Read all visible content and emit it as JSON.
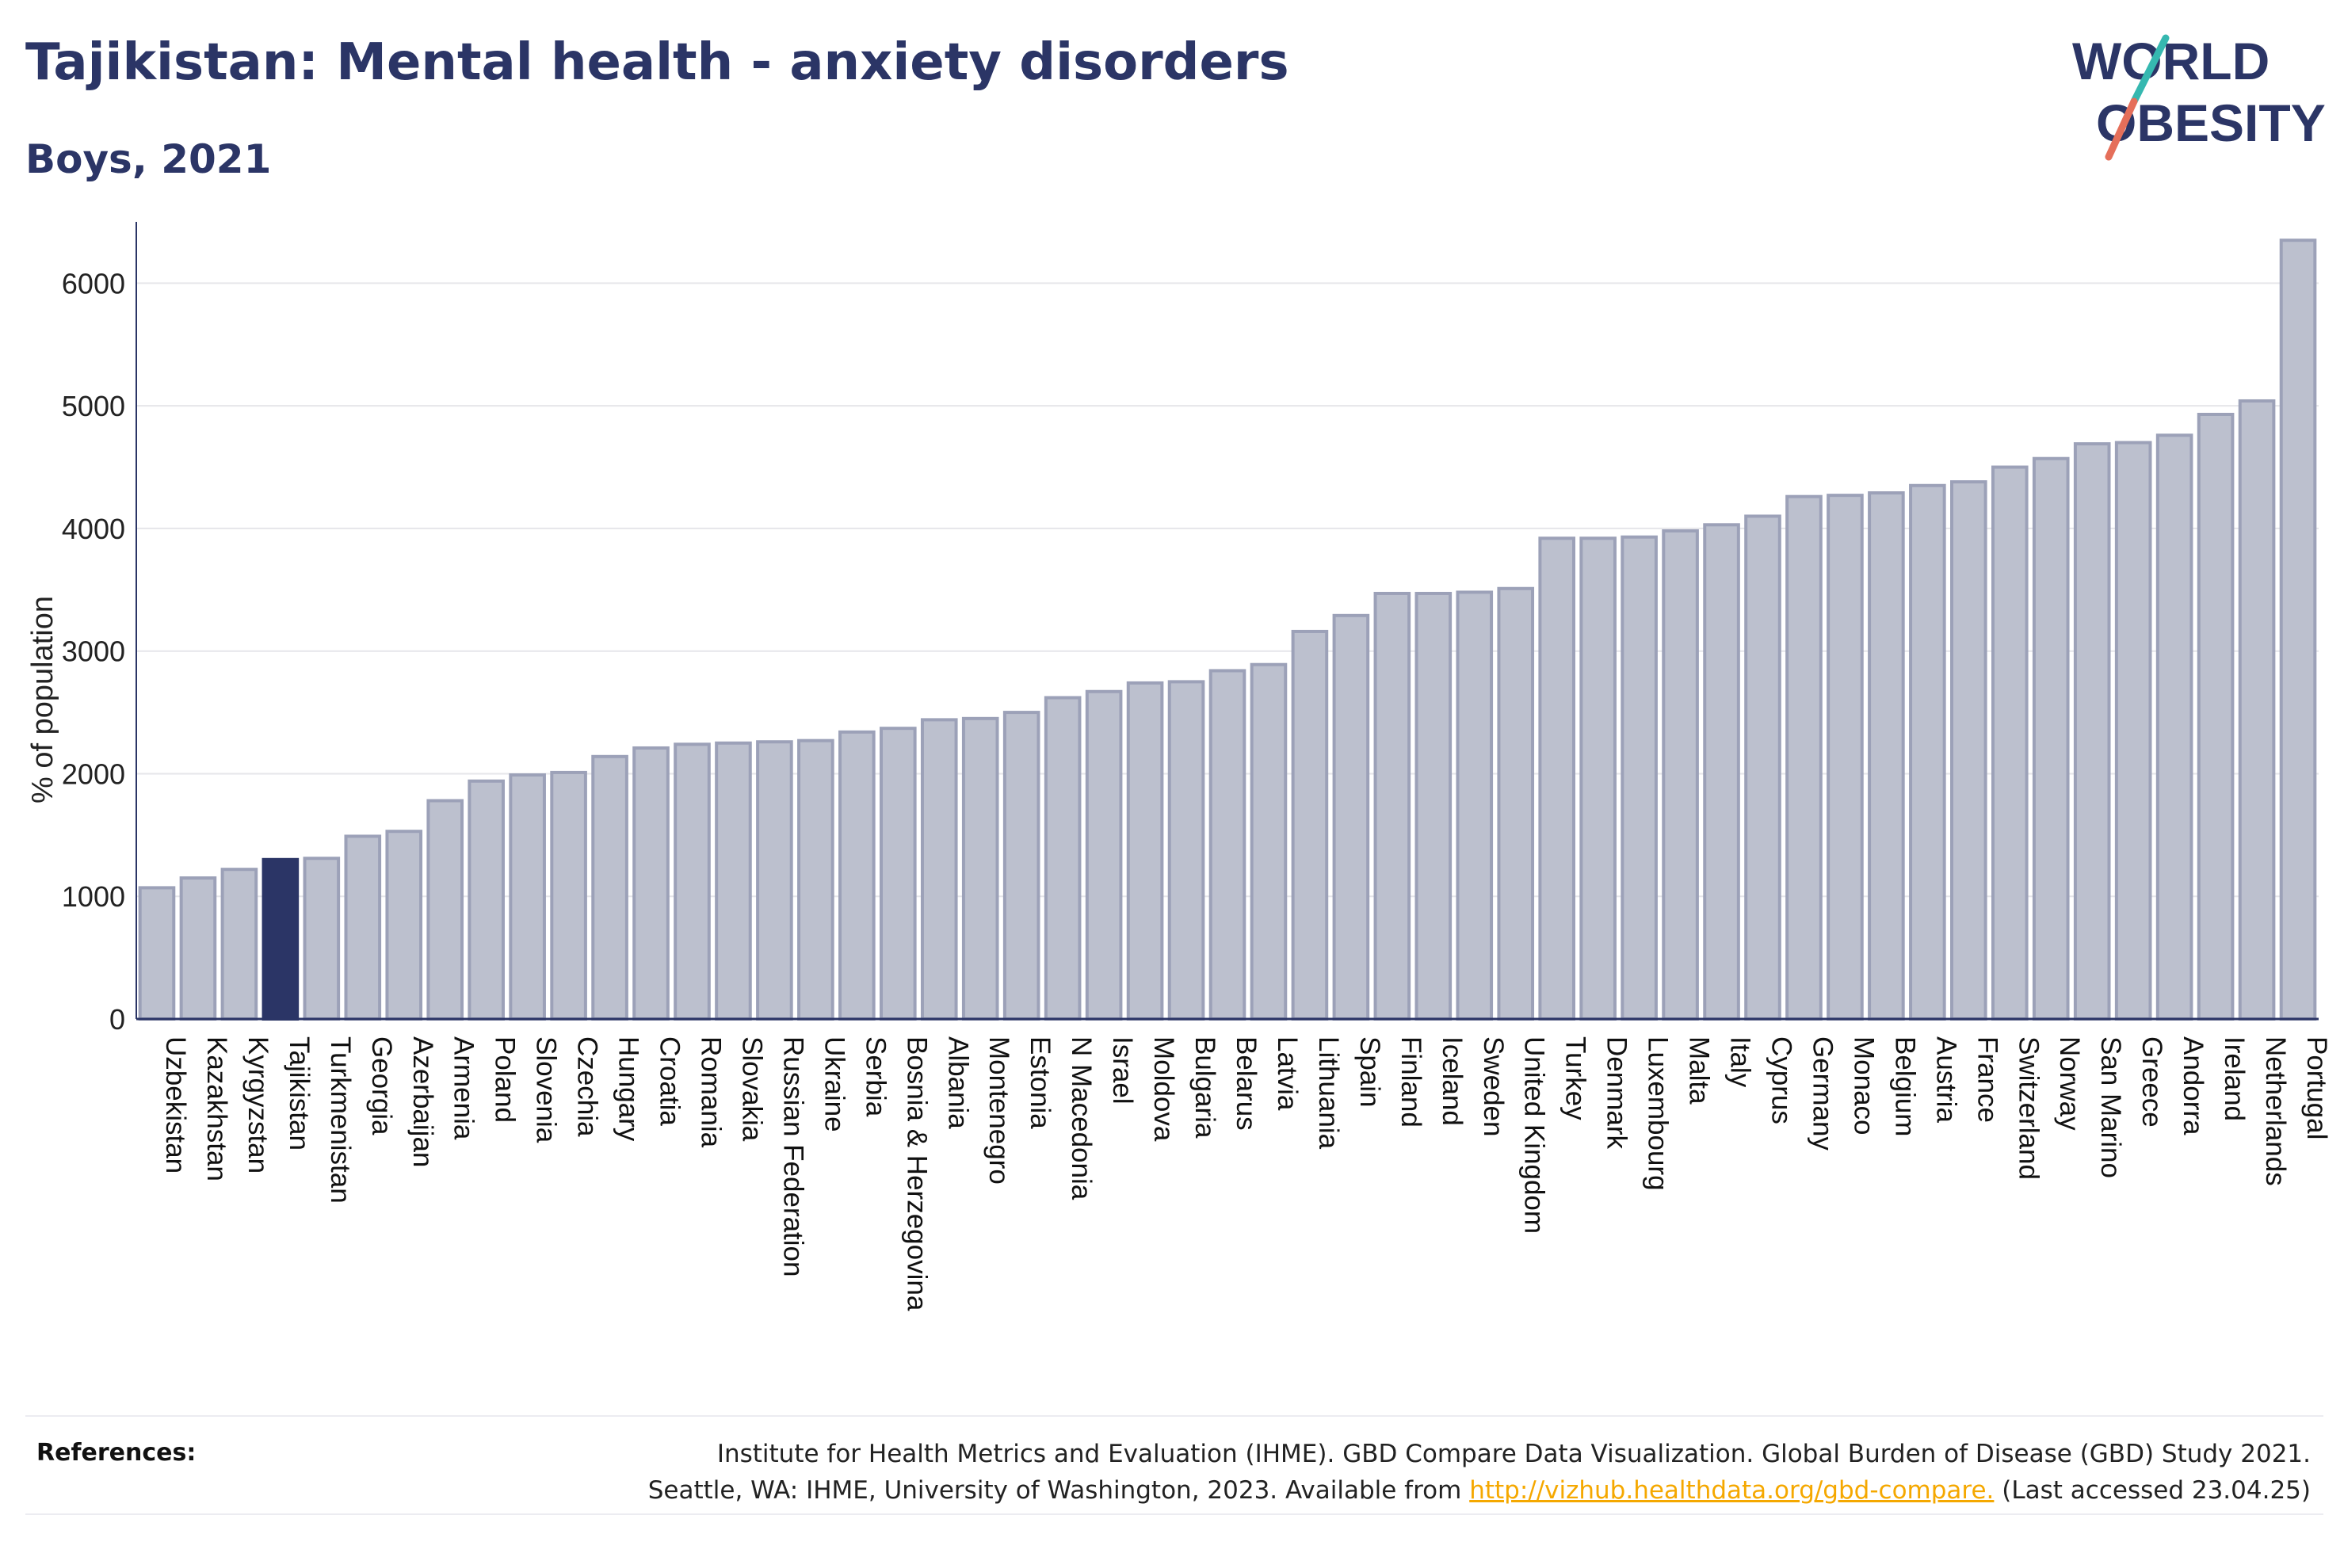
{
  "header": {
    "title": "Tajikistan: Mental health - anxiety disorders",
    "subtitle": "Boys, 2021"
  },
  "logo": {
    "line1": "WORLD",
    "line2": "OBESITY"
  },
  "colors": {
    "bar_fill": "#bcc0ce",
    "bar_stroke": "#9ca1b8",
    "highlight": "#2b3566",
    "accent_red": "#e56f5a",
    "accent_teal": "#36b8b0",
    "link": "#f5a800"
  },
  "chart_data": {
    "type": "bar",
    "title": "Tajikistan: Mental health - anxiety disorders",
    "subtitle": "Boys, 2021",
    "ylabel": "% of population",
    "xlabel": "",
    "ylim": [
      0,
      6500
    ],
    "yticks": [
      0,
      1000,
      2000,
      3000,
      4000,
      5000,
      6000
    ],
    "grid": true,
    "highlight": "Tajikistan",
    "categories": [
      "Uzbekistan",
      "Kazakhstan",
      "Kyrgyzstan",
      "Tajikistan",
      "Turkmenistan",
      "Georgia",
      "Azerbaijan",
      "Armenia",
      "Poland",
      "Slovenia",
      "Czechia",
      "Hungary",
      "Croatia",
      "Romania",
      "Slovakia",
      "Russian Federation",
      "Ukraine",
      "Serbia",
      "Bosnia & Herzegovina",
      "Albania",
      "Montenegro",
      "Estonia",
      "N Macedonia",
      "Israel",
      "Moldova",
      "Bulgaria",
      "Belarus",
      "Latvia",
      "Lithuania",
      "Spain",
      "Finland",
      "Iceland",
      "Sweden",
      "United Kingdom",
      "Turkey",
      "Denmark",
      "Luxembourg",
      "Malta",
      "Italy",
      "Cyprus",
      "Germany",
      "Monaco",
      "Belgium",
      "Austria",
      "France",
      "Switzerland",
      "Norway",
      "San Marino",
      "Greece",
      "Andorra",
      "Ireland",
      "Netherlands",
      "Portugal"
    ],
    "values": [
      1070,
      1150,
      1220,
      1300,
      1310,
      1490,
      1530,
      1780,
      1940,
      1990,
      2010,
      2140,
      2210,
      2240,
      2250,
      2260,
      2270,
      2340,
      2370,
      2440,
      2450,
      2500,
      2620,
      2670,
      2740,
      2750,
      2840,
      2890,
      3160,
      3290,
      3470,
      3470,
      3480,
      3510,
      3920,
      3920,
      3930,
      3980,
      4030,
      4100,
      4260,
      4270,
      4290,
      4350,
      4380,
      4500,
      4570,
      4690,
      4700,
      4760,
      4930,
      5040,
      6350
    ]
  },
  "references": {
    "label": "References:",
    "line1": "Institute for Health Metrics and Evaluation (IHME). GBD Compare Data Visualization. Global Burden of Disease (GBD) Study 2021.",
    "line2_prefix": "Seattle, WA: IHME, University of Washington, 2023. Available from ",
    "link": "http://vizhub.healthdata.org/gbd-compare.",
    "line2_suffix": " (Last accessed 23.04.25)"
  }
}
